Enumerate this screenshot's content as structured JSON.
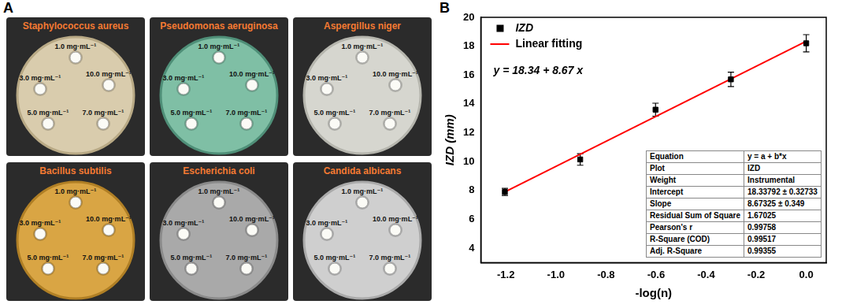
{
  "chart_data": {
    "type": "scatter",
    "panel": "B",
    "x_label": "-log(n)",
    "y_label": "IZD (mm)",
    "annotation": "y = 18.34 + 8.67 x",
    "xlim": [
      -1.3,
      0.08
    ],
    "xticks": [
      -1.2,
      {
        "value": -1,
        "label": "-1.0"
      },
      -0.8,
      -0.6,
      -0.4,
      -0.2,
      {
        "value": 0,
        "label": "0.0"
      }
    ],
    "ylim": [
      3,
      20
    ],
    "yticks": [
      4,
      6,
      8,
      10,
      12,
      14,
      16,
      18,
      20
    ],
    "grid": false,
    "legend": "upper left",
    "series": [
      {
        "name": "IZD",
        "type": "scatter",
        "color": "#000000",
        "marker": "square",
        "x": [
          -1.204,
          -0.903,
          -0.602,
          -0.301,
          0
        ],
        "values": [
          7.9,
          10.15,
          13.6,
          15.7,
          18.2
        ],
        "errors": [
          0.25,
          0.4,
          0.45,
          0.5,
          0.6
        ]
      },
      {
        "name": "Linear fitting",
        "type": "line",
        "color": "#ff0000",
        "line_style": "solid",
        "x": [
          -1.204,
          0
        ],
        "values": [
          7.9,
          18.34
        ]
      }
    ],
    "fit_table": {
      "rows": [
        [
          "Equation",
          "y = a + b*x"
        ],
        [
          "Plot",
          "IZD"
        ],
        [
          "Weight",
          "Instrumental"
        ],
        [
          "Intercept",
          "18.33792 ± 0.32733"
        ],
        [
          "Slope",
          "8.67325 ± 0.349"
        ],
        [
          "Residual Sum of Square",
          "1.67025"
        ],
        [
          "Pearson's r",
          "0.99758"
        ],
        [
          "R-Square (COD)",
          "0.99517"
        ],
        [
          "Adj. R-Square",
          "0.99355"
        ]
      ]
    }
  },
  "photo_panel": {
    "panel": "A",
    "dishes": [
      {
        "title": "Staphylococcus aureus",
        "labels": [
          "1.0 mg·mL⁻¹",
          "3.0 mg·mL⁻¹",
          "5.0 mg·mL⁻¹",
          "7.0 mg·mL⁻¹",
          "10.0 mg·mL⁻¹"
        ]
      },
      {
        "title": "Pseudomonas aeruginosa",
        "labels": [
          "1.0 mg·mL⁻¹",
          "3.0 mg·mL⁻¹",
          "5.0 mg·mL⁻¹",
          "7.0 mg·mL⁻¹",
          "10.0 mg·mL⁻¹"
        ]
      },
      {
        "title": "Aspergillus niger",
        "labels": [
          "1.0 mg·mL⁻¹",
          "3.0 mg·mL⁻¹",
          "5.0 mg·mL⁻¹",
          "7.0 mg·mL⁻¹",
          "10.0 mg·mL⁻¹"
        ]
      },
      {
        "title": "Bacillus subtilis",
        "labels": [
          "1.0 mg·mL⁻¹",
          "3.0 mg·mL⁻¹",
          "5.0 mg·mL⁻¹",
          "7.0 mg·mL⁻¹",
          "10.0 mg·mL⁻¹"
        ]
      },
      {
        "title": "Escherichia coli",
        "labels": [
          "1.0 mg·mL⁻¹",
          "3.0 mg·mL⁻¹",
          "5.0 mg·mL⁻¹",
          "7.0 mg·mL⁻¹",
          "10.0 mg·mL⁻¹"
        ]
      },
      {
        "title": "Candida albicans",
        "labels": [
          "1.0 mg·mL⁻¹",
          "3.0 mg·mL⁻¹",
          "5.0 mg·mL⁻¹",
          "7.0 mg·mL⁻¹",
          "10.0 mg·mL⁻¹"
        ]
      }
    ]
  }
}
